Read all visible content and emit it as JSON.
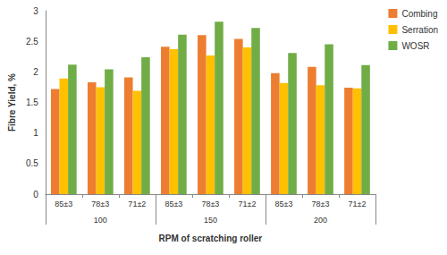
{
  "chart_data": {
    "type": "bar",
    "x_label": "RPM of scratching roller",
    "y_label": "Fibre Yield, %",
    "categories": [
      "85±3",
      "78±3",
      "71±2",
      "85±3",
      "78±3",
      "71±2",
      "85±3",
      "78±3",
      "71±2"
    ],
    "category_groups": [
      "100",
      "150",
      "200"
    ],
    "series": [
      {
        "name": "Combing",
        "color": "#ED7D31",
        "values": [
          1.72,
          1.83,
          1.91,
          2.41,
          2.6,
          2.54,
          1.98,
          2.08,
          1.74
        ]
      },
      {
        "name": "Serration",
        "color": "#FFC000",
        "values": [
          1.89,
          1.75,
          1.69,
          2.37,
          2.27,
          2.4,
          1.82,
          1.78,
          1.73
        ]
      },
      {
        "name": "WOSR",
        "color": "#70AD47",
        "values": [
          2.12,
          2.04,
          2.24,
          2.61,
          2.82,
          2.72,
          2.31,
          2.45,
          2.11
        ]
      }
    ],
    "ylim": [
      0,
      3
    ],
    "yticks": [
      0,
      0.5,
      1,
      1.5,
      2,
      2.5,
      3
    ],
    "grid": false,
    "legend": "right"
  }
}
